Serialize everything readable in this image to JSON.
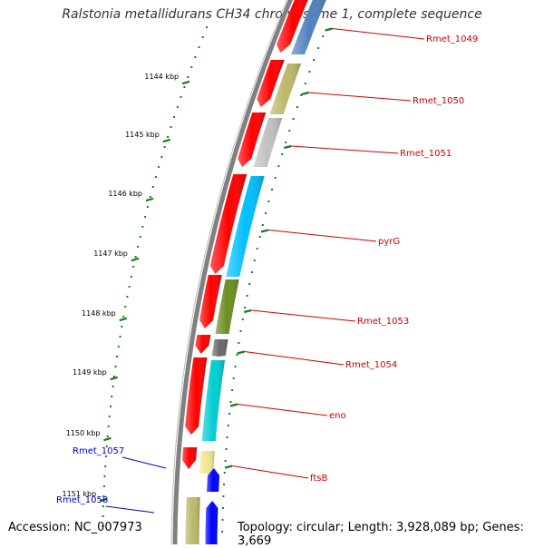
{
  "header": {
    "title": "Ralstonia metallidurans CH34 chromosome 1, complete sequence"
  },
  "footer": {
    "accession": "Accession: NC_007973",
    "topology": "Topology: circular; Length: 3,928,089 bp; Genes: 3,669"
  },
  "ruler": {
    "ticks": [
      "1144 kbp",
      "1145 kbp",
      "1146 kbp",
      "1147 kbp",
      "1148 kbp",
      "1149 kbp",
      "1150 kbp",
      "1151 kbp"
    ]
  },
  "colors": {
    "backbone": "#808080",
    "ruler_tick": "#1b7a1b",
    "forward_label": "#cc0000",
    "reverse_label": "#0000cc",
    "orf_forward": "#ff0000",
    "orf_reverse": "#0000ff"
  },
  "genes": [
    {
      "name": "Rmet_1049",
      "strand": "forward",
      "color": "#4f81bd"
    },
    {
      "name": "Rmet_1050",
      "strand": "forward",
      "color": "#bdb76b"
    },
    {
      "name": "Rmet_1051",
      "strand": "forward",
      "color": "#c0c0c0"
    },
    {
      "name": "pyrG",
      "strand": "forward",
      "color": "#00bfff"
    },
    {
      "name": "Rmet_1053",
      "strand": "forward",
      "color": "#6b8e23"
    },
    {
      "name": "Rmet_1054",
      "strand": "forward",
      "color": "#696969"
    },
    {
      "name": "eno",
      "strand": "forward",
      "color": "#00ced1"
    },
    {
      "name": "ftsB",
      "strand": "forward",
      "color": "#f0e68c"
    },
    {
      "name": "Rmet_1057",
      "strand": "reverse",
      "color": "#0000ff"
    },
    {
      "name": "Rmet_1058",
      "strand": "reverse",
      "color": "#bdb76b"
    }
  ]
}
